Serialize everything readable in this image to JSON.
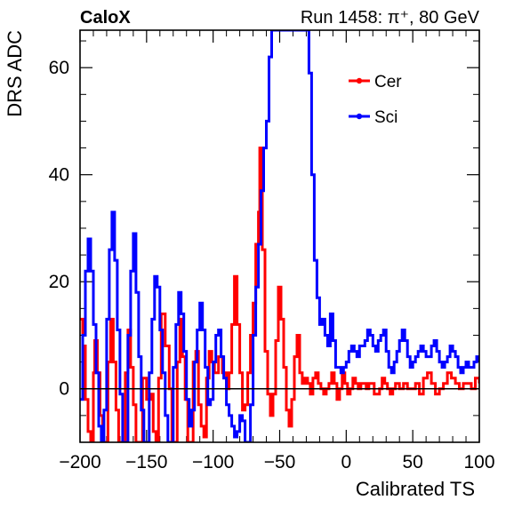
{
  "header": {
    "experiment": "CaloX",
    "run_label": "Run 1458:   π⁺, 80 GeV"
  },
  "chart_data": {
    "type": "line",
    "title": "",
    "xlabel": "Calibrated TS",
    "ylabel": "DRS ADC",
    "xlim": [
      -200,
      100
    ],
    "ylim": [
      -10,
      67
    ],
    "xticks": [
      -200,
      -150,
      -100,
      -50,
      0,
      50,
      100
    ],
    "xtick_labels": [
      "−200",
      "−150",
      "−100",
      "−50",
      "0",
      "50",
      "100"
    ],
    "yticks": [
      0,
      20,
      40,
      60
    ],
    "ytick_labels": [
      "0",
      "20",
      "40",
      "60"
    ],
    "grid": false,
    "legend_position": "top-right",
    "reference_line_y": 0,
    "series": [
      {
        "name": "Cer",
        "color": "#ff0000",
        "points": [
          [
            -200,
            13
          ],
          [
            -198,
            8
          ],
          [
            -196,
            -2
          ],
          [
            -194,
            -8
          ],
          [
            -192,
            -10
          ],
          [
            -190,
            3
          ],
          [
            -189,
            9
          ],
          [
            -187,
            3
          ],
          [
            -185,
            -5
          ],
          [
            -183,
            -10
          ],
          [
            -181,
            -10
          ],
          [
            -179,
            5
          ],
          [
            -177,
            13
          ],
          [
            -175,
            5
          ],
          [
            -173,
            -4
          ],
          [
            -171,
            -10
          ],
          [
            -168,
            -10
          ],
          [
            -166,
            3
          ],
          [
            -164,
            11
          ],
          [
            -162,
            4
          ],
          [
            -160,
            -3
          ],
          [
            -158,
            -10
          ],
          [
            -155,
            -10
          ],
          [
            -153,
            2
          ],
          [
            -150,
            -2
          ],
          [
            -147,
            -1
          ],
          [
            -145,
            -8
          ],
          [
            -143,
            -10
          ],
          [
            -141,
            2
          ],
          [
            -139,
            14
          ],
          [
            -136,
            8
          ],
          [
            -133,
            0
          ],
          [
            -131,
            -10
          ],
          [
            -129,
            -10
          ],
          [
            -127,
            5
          ],
          [
            -125,
            13
          ],
          [
            -123,
            6
          ],
          [
            -121,
            -2
          ],
          [
            -119,
            -10
          ],
          [
            -117,
            -10
          ],
          [
            -115,
            5
          ],
          [
            -113,
            7
          ],
          [
            -111,
            -3
          ],
          [
            -109,
            -7
          ],
          [
            -107,
            -9
          ],
          [
            -105,
            2
          ],
          [
            -103,
            7
          ],
          [
            -101,
            5
          ],
          [
            -99,
            3
          ],
          [
            -96,
            6
          ],
          [
            -93,
            3
          ],
          [
            -90,
            0
          ],
          [
            -88,
            3
          ],
          [
            -86,
            12
          ],
          [
            -84,
            21
          ],
          [
            -82,
            12
          ],
          [
            -80,
            3
          ],
          [
            -78,
            -4
          ],
          [
            -76,
            -3
          ],
          [
            -74,
            3
          ],
          [
            -72,
            10
          ],
          [
            -70,
            16
          ],
          [
            -68,
            27
          ],
          [
            -66,
            33
          ],
          [
            -65,
            45
          ],
          [
            -63,
            26
          ],
          [
            -61,
            7
          ],
          [
            -59,
            -1
          ],
          [
            -57,
            -5
          ],
          [
            -55,
            -1
          ],
          [
            -53,
            9
          ],
          [
            -51,
            19
          ],
          [
            -49,
            13
          ],
          [
            -47,
            4
          ],
          [
            -45,
            -4
          ],
          [
            -43,
            -7
          ],
          [
            -41,
            -2
          ],
          [
            -39,
            6
          ],
          [
            -37,
            10
          ],
          [
            -35,
            3
          ],
          [
            -33,
            1
          ],
          [
            -31,
            2
          ],
          [
            -29,
            1
          ],
          [
            -27,
            -1
          ],
          [
            -25,
            2
          ],
          [
            -23,
            3
          ],
          [
            -21,
            1
          ],
          [
            -19,
            0
          ],
          [
            -17,
            -1
          ],
          [
            -15,
            0
          ],
          [
            -13,
            1
          ],
          [
            -11,
            3
          ],
          [
            -9,
            1
          ],
          [
            -7,
            -2
          ],
          [
            -5,
            0
          ],
          [
            -3,
            3
          ],
          [
            -1,
            1
          ],
          [
            1,
            -1
          ],
          [
            3,
            0
          ],
          [
            5,
            2
          ],
          [
            7,
            1
          ],
          [
            9,
            0
          ],
          [
            11,
            1
          ],
          [
            13,
            1
          ],
          [
            15,
            0
          ],
          [
            17,
            1
          ],
          [
            19,
            1
          ],
          [
            21,
            -1
          ],
          [
            23,
            -1
          ],
          [
            25,
            0
          ],
          [
            27,
            2
          ],
          [
            29,
            1
          ],
          [
            31,
            0
          ],
          [
            33,
            -1
          ],
          [
            35,
            0
          ],
          [
            37,
            1
          ],
          [
            40,
            0
          ],
          [
            43,
            1
          ],
          [
            46,
            0
          ],
          [
            49,
            0
          ],
          [
            52,
            1
          ],
          [
            55,
            -1
          ],
          [
            58,
            2
          ],
          [
            61,
            3
          ],
          [
            64,
            1
          ],
          [
            67,
            -1
          ],
          [
            70,
            0
          ],
          [
            73,
            1
          ],
          [
            76,
            3
          ],
          [
            79,
            2
          ],
          [
            82,
            1
          ],
          [
            85,
            0
          ],
          [
            88,
            1
          ],
          [
            91,
            1
          ],
          [
            94,
            0
          ],
          [
            97,
            2
          ],
          [
            100,
            1
          ]
        ]
      },
      {
        "name": "Sci",
        "color": "#0000ff",
        "points": [
          [
            -200,
            -2
          ],
          [
            -198,
            10
          ],
          [
            -196,
            22
          ],
          [
            -194,
            28
          ],
          [
            -192,
            22
          ],
          [
            -190,
            12
          ],
          [
            -188,
            3
          ],
          [
            -186,
            -7
          ],
          [
            -184,
            -10
          ],
          [
            -182,
            -4
          ],
          [
            -180,
            13
          ],
          [
            -178,
            26
          ],
          [
            -176,
            33
          ],
          [
            -174,
            24
          ],
          [
            -172,
            11
          ],
          [
            -170,
            -1
          ],
          [
            -168,
            -10
          ],
          [
            -166,
            -10
          ],
          [
            -164,
            10
          ],
          [
            -162,
            22
          ],
          [
            -160,
            29
          ],
          [
            -158,
            18
          ],
          [
            -156,
            6
          ],
          [
            -154,
            -4
          ],
          [
            -152,
            -10
          ],
          [
            -150,
            -10
          ],
          [
            -148,
            3
          ],
          [
            -146,
            13
          ],
          [
            -144,
            21
          ],
          [
            -142,
            19
          ],
          [
            -140,
            11
          ],
          [
            -138,
            3
          ],
          [
            -136,
            -5
          ],
          [
            -134,
            -10
          ],
          [
            -132,
            -10
          ],
          [
            -130,
            4
          ],
          [
            -128,
            12
          ],
          [
            -126,
            18
          ],
          [
            -124,
            14
          ],
          [
            -122,
            7
          ],
          [
            -120,
            -2
          ],
          [
            -118,
            -7
          ],
          [
            -116,
            -4
          ],
          [
            -114,
            5
          ],
          [
            -112,
            11
          ],
          [
            -110,
            16
          ],
          [
            -108,
            11
          ],
          [
            -106,
            4
          ],
          [
            -104,
            -3
          ],
          [
            -102,
            -2
          ],
          [
            -100,
            5
          ],
          [
            -98,
            10
          ],
          [
            -96,
            11
          ],
          [
            -94,
            6
          ],
          [
            -92,
            2
          ],
          [
            -90,
            -3
          ],
          [
            -88,
            -5
          ],
          [
            -86,
            -7
          ],
          [
            -84,
            -9
          ],
          [
            -82,
            -8
          ],
          [
            -80,
            -5
          ],
          [
            -78,
            -6
          ],
          [
            -76,
            -10
          ],
          [
            -74,
            -10
          ],
          [
            -72,
            -3
          ],
          [
            -70,
            10
          ],
          [
            -68,
            19
          ],
          [
            -66,
            27
          ],
          [
            -64,
            37
          ],
          [
            -62,
            45
          ],
          [
            -60,
            50
          ],
          [
            -58,
            62
          ],
          [
            -56,
            67
          ],
          [
            -54,
            67
          ],
          [
            -50,
            67
          ],
          [
            -46,
            67
          ],
          [
            -42,
            67
          ],
          [
            -38,
            67
          ],
          [
            -35,
            67
          ],
          [
            -32,
            67
          ],
          [
            -30,
            67
          ],
          [
            -28,
            59
          ],
          [
            -26,
            40
          ],
          [
            -24,
            24
          ],
          [
            -22,
            17
          ],
          [
            -20,
            12
          ],
          [
            -18,
            13
          ],
          [
            -16,
            10
          ],
          [
            -14,
            8
          ],
          [
            -12,
            14
          ],
          [
            -10,
            9
          ],
          [
            -8,
            4
          ],
          [
            -6,
            4
          ],
          [
            -4,
            3
          ],
          [
            -2,
            4
          ],
          [
            0,
            5
          ],
          [
            2,
            7
          ],
          [
            4,
            8
          ],
          [
            6,
            7
          ],
          [
            8,
            6
          ],
          [
            10,
            8
          ],
          [
            12,
            8
          ],
          [
            14,
            9
          ],
          [
            16,
            11
          ],
          [
            18,
            10
          ],
          [
            20,
            8
          ],
          [
            22,
            7
          ],
          [
            24,
            9
          ],
          [
            26,
            10
          ],
          [
            28,
            11
          ],
          [
            30,
            7
          ],
          [
            32,
            4
          ],
          [
            34,
            3
          ],
          [
            36,
            5
          ],
          [
            38,
            7
          ],
          [
            40,
            9
          ],
          [
            42,
            11
          ],
          [
            44,
            9
          ],
          [
            46,
            6
          ],
          [
            48,
            4
          ],
          [
            50,
            5
          ],
          [
            52,
            6
          ],
          [
            54,
            7
          ],
          [
            56,
            8
          ],
          [
            58,
            7
          ],
          [
            60,
            6
          ],
          [
            62,
            6
          ],
          [
            64,
            8
          ],
          [
            66,
            9
          ],
          [
            68,
            7
          ],
          [
            70,
            5
          ],
          [
            72,
            4
          ],
          [
            74,
            5
          ],
          [
            76,
            6
          ],
          [
            78,
            8
          ],
          [
            80,
            7
          ],
          [
            82,
            6
          ],
          [
            84,
            4
          ],
          [
            86,
            3
          ],
          [
            88,
            4
          ],
          [
            90,
            5
          ],
          [
            92,
            4
          ],
          [
            94,
            4
          ],
          [
            96,
            5
          ],
          [
            98,
            6
          ],
          [
            100,
            5
          ]
        ]
      }
    ]
  }
}
